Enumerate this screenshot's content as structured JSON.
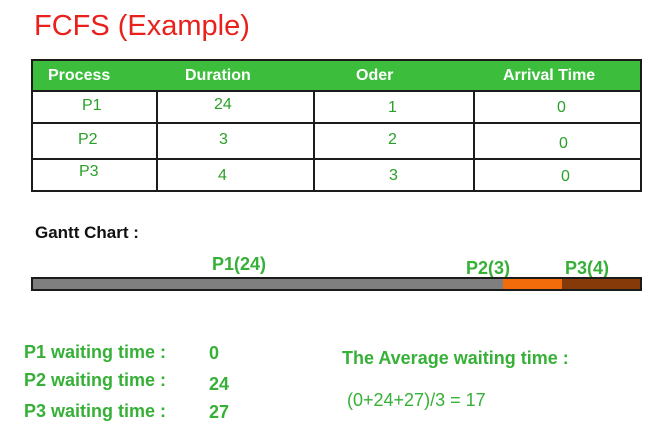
{
  "title": "FCFS (Example)",
  "table": {
    "headers": [
      "Process",
      "Duration",
      "Oder",
      "Arrival Time"
    ],
    "rows": [
      {
        "process": "P1",
        "duration": "24",
        "order": "1",
        "arrival": "0"
      },
      {
        "process": "P2",
        "duration": "3",
        "order": "2",
        "arrival": "0"
      },
      {
        "process": "P3",
        "duration": "4",
        "order": "3",
        "arrival": "0"
      }
    ]
  },
  "gantt": {
    "title": "Gantt Chart :",
    "segments": [
      {
        "label": "P1(24)",
        "duration": 24,
        "color": "#7f7f7f"
      },
      {
        "label": "P2(3)",
        "duration": 3,
        "color": "#f26c0c"
      },
      {
        "label": "P3(4)",
        "duration": 4,
        "color": "#873a09"
      }
    ]
  },
  "waiting": [
    {
      "label": "P1 waiting time :",
      "value": "0"
    },
    {
      "label": "P2 waiting time :",
      "value": "24"
    },
    {
      "label": "P3 waiting time :",
      "value": "27"
    }
  ],
  "average": {
    "label": "The Average waiting time :",
    "formula": "(0+24+27)/3 = 17"
  }
}
